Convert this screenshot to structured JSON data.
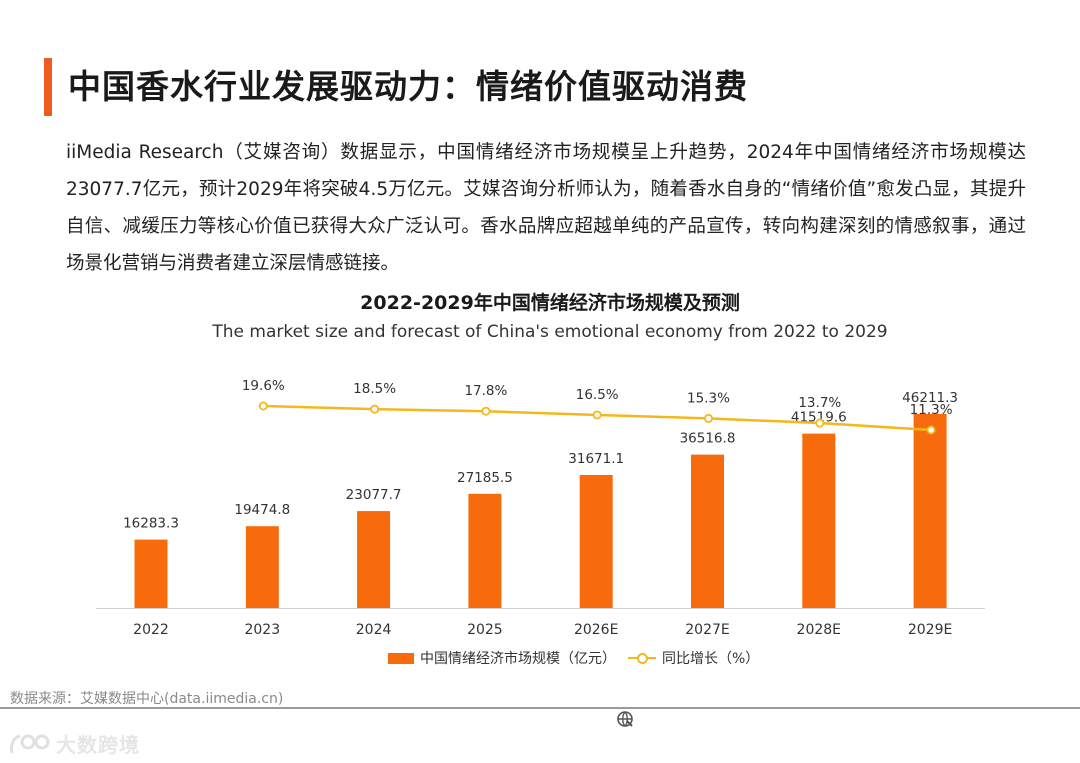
{
  "page": {
    "title": "中国香水行业发展驱动力：情绪价值驱动消费",
    "intro": "iiMedia Research（艾媒咨询）数据显示，中国情绪经济市场规模呈上升趋势，2024年中国情绪经济市场规模达23077.7亿元，预计2029年将突破4.5万亿元。艾媒咨询分析师认为，随着香水自身的“情绪价值”愈发凸显，其提升自信、减缓压力等核心价值已获得大众广泛认可。香水品牌应超越单纯的产品宣传，转向构建深刻的情感叙事，通过场景化营销与消费者建立深层情感链接。",
    "source": "数据来源：艾媒数据中心(data.iimedia.cn)",
    "watermark": "大数跨境",
    "accent_color": "#f25a1f"
  },
  "chart_data": {
    "type": "bar",
    "title": "2022-2029年中国情绪经济市场规模及预测",
    "subtitle": "The market size and forecast of China's emotional economy from 2022 to 2029",
    "categories": [
      "2022",
      "2023",
      "2024",
      "2025",
      "2026E",
      "2027E",
      "2028E",
      "2029E"
    ],
    "series": [
      {
        "name": "中国情绪经济市场规模（亿元）",
        "type": "bar",
        "color": "#f76b0c",
        "values": [
          16283.3,
          19474.8,
          23077.7,
          27185.5,
          31671.1,
          36516.8,
          41519.6,
          46211.3
        ],
        "labels": [
          "16283.3",
          "19474.8",
          "23077.7",
          "27185.5",
          "31671.1",
          "36516.8",
          "41519.6",
          "46211.3"
        ]
      },
      {
        "name": "同比增长（%）",
        "type": "line",
        "color": "#f5b81c",
        "values": [
          19.6,
          18.5,
          17.8,
          16.5,
          15.3,
          13.7,
          11.3
        ],
        "x": [
          "2023",
          "2024",
          "2025",
          "2026E",
          "2027E",
          "2028E",
          "2029E"
        ],
        "labels": [
          "19.6%",
          "18.5%",
          "17.8%",
          "16.5%",
          "15.3%",
          "13.7%",
          "11.3%"
        ]
      }
    ],
    "ylim": [
      0,
      50000
    ],
    "y2lim": [
      0,
      20
    ],
    "grid": false,
    "legend": "bottom-center"
  }
}
